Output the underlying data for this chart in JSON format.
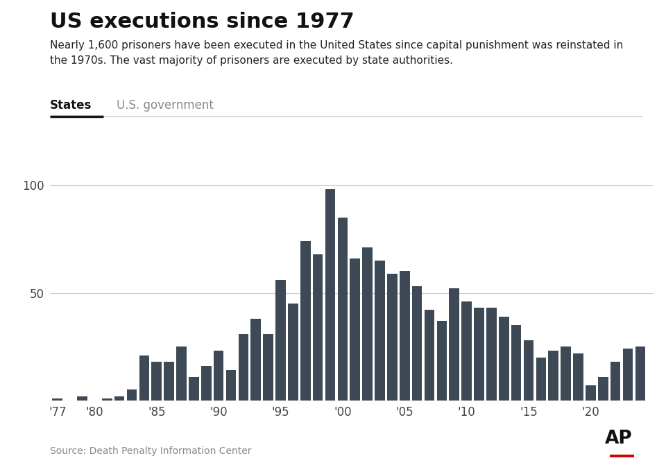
{
  "title": "US executions since 1977",
  "subtitle": "Nearly 1,600 prisoners have been executed in the United States since capital punishment was reinstated in\nthe 1970s. The vast majority of prisoners are executed by state authorities.",
  "tab1": "States",
  "tab2": "U.S. government",
  "source": "Source: Death Penalty Information Center",
  "bar_color": "#3d4a56",
  "background_color": "#ffffff",
  "years": [
    1977,
    1978,
    1979,
    1980,
    1981,
    1982,
    1983,
    1984,
    1985,
    1986,
    1987,
    1988,
    1989,
    1990,
    1991,
    1992,
    1993,
    1994,
    1995,
    1996,
    1997,
    1998,
    1999,
    2000,
    2001,
    2002,
    2003,
    2004,
    2005,
    2006,
    2007,
    2008,
    2009,
    2010,
    2011,
    2012,
    2013,
    2014,
    2015,
    2016,
    2017,
    2018,
    2019,
    2020,
    2021,
    2022,
    2023,
    2024
  ],
  "values": [
    1,
    0,
    2,
    0,
    1,
    2,
    5,
    21,
    18,
    18,
    25,
    11,
    16,
    23,
    14,
    31,
    38,
    31,
    56,
    45,
    74,
    68,
    98,
    85,
    66,
    71,
    65,
    59,
    60,
    53,
    42,
    37,
    52,
    46,
    43,
    43,
    39,
    35,
    28,
    20,
    23,
    25,
    22,
    7,
    11,
    18,
    24,
    25
  ],
  "yticks": [
    50,
    100
  ],
  "xtick_labels": [
    "'77",
    "'80",
    "'85",
    "'90",
    "'95",
    "'00",
    "'05",
    "'10",
    "'15",
    "'20"
  ],
  "xtick_positions": [
    1977,
    1980,
    1985,
    1990,
    1995,
    2000,
    2005,
    2010,
    2015,
    2020
  ],
  "ylim": [
    0,
    110
  ],
  "xlim": [
    1976.4,
    2025.0
  ]
}
